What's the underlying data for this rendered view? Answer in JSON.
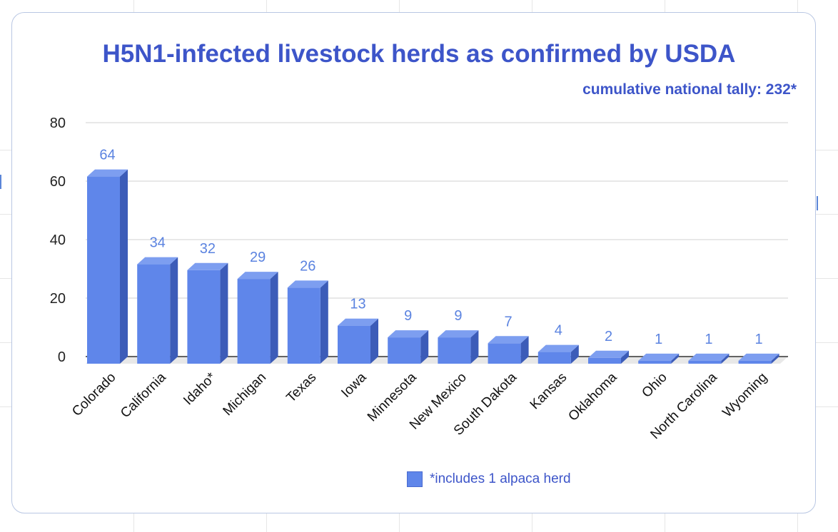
{
  "chart_data": {
    "type": "bar",
    "title": "H5N1-infected livestock herds as confirmed by USDA",
    "subtitle": "cumulative national tally: 232*",
    "categories": [
      "Colorado",
      "California",
      "Idaho*",
      "Michigan",
      "Texas",
      "Iowa",
      "Minnesota",
      "New Mexico",
      "South Dakota",
      "Kansas",
      "Oklahoma",
      "Ohio",
      "North Carolina",
      "Wyoming"
    ],
    "values": [
      64,
      34,
      32,
      29,
      26,
      13,
      9,
      9,
      7,
      4,
      2,
      1,
      1,
      1
    ],
    "yticks": [
      "0",
      "20",
      "40",
      "60",
      "80"
    ],
    "ylim": [
      0,
      80
    ],
    "grid": true,
    "bar_style": "3d",
    "legend": {
      "label": "*includes 1 alpaca herd",
      "position": "bottom"
    },
    "colors": {
      "bar_front": "#5f86ea",
      "bar_top": "#7d9ef0",
      "bar_side": "#3c5cb8",
      "data_label": "#5b83e0",
      "title": "#3d55c9"
    }
  }
}
